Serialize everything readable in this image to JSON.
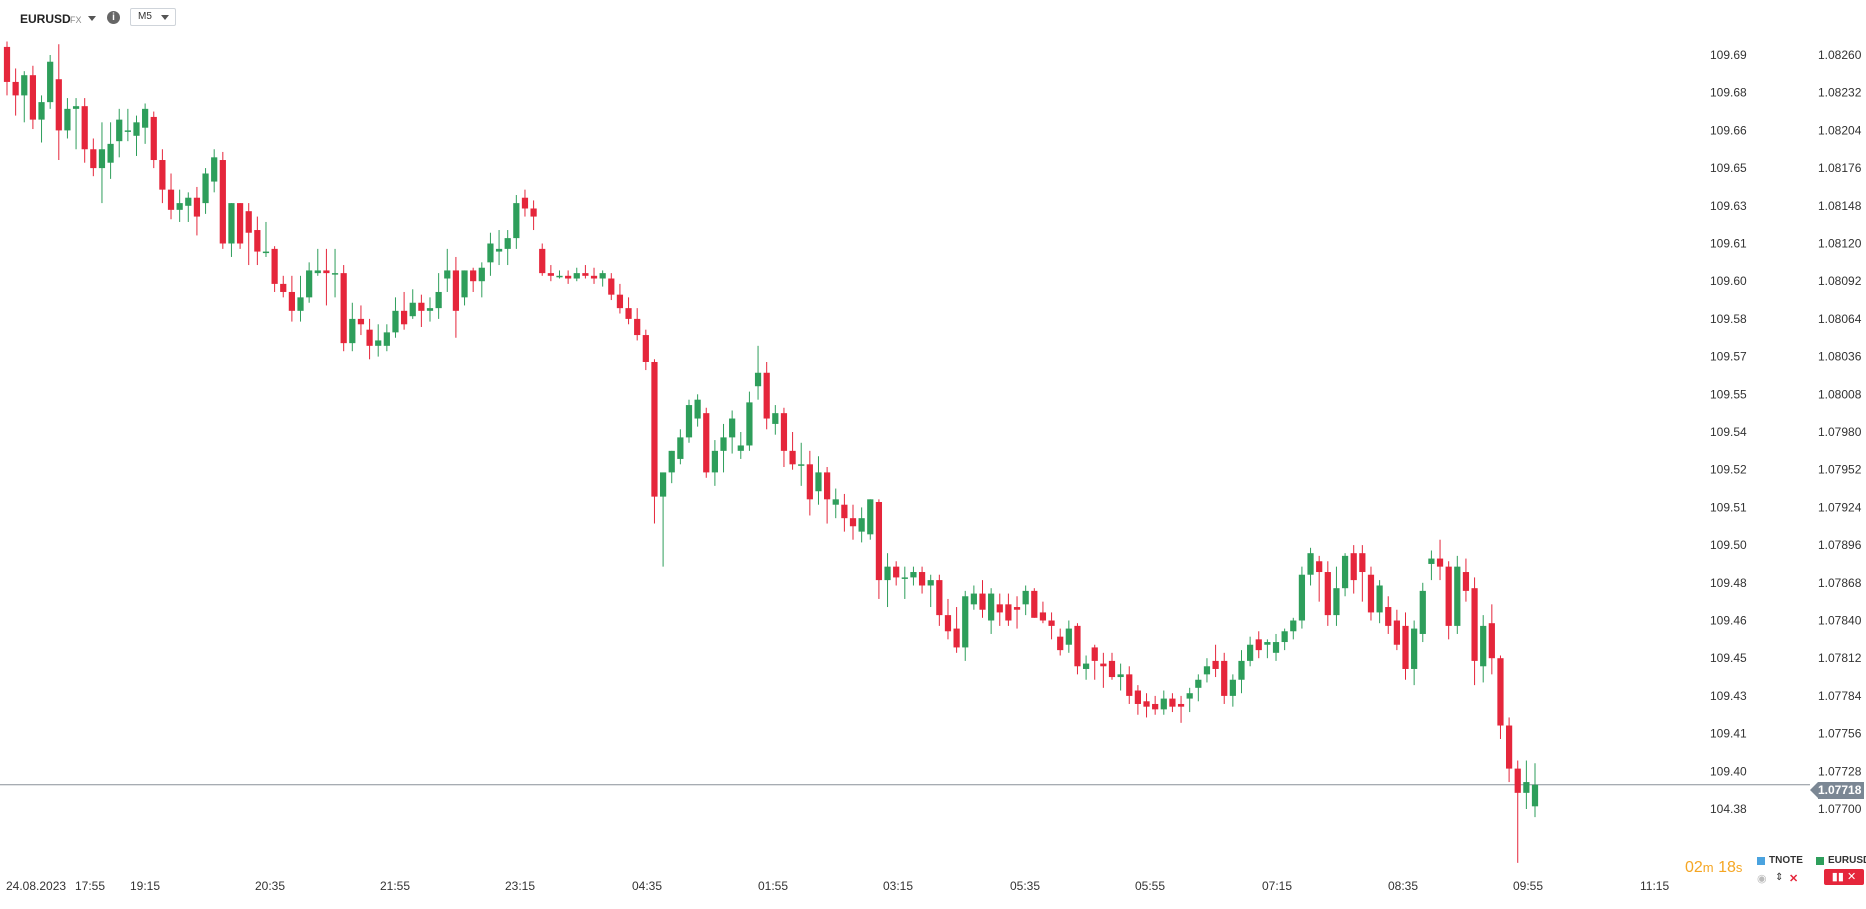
{
  "header": {
    "symbol": "EURUSD",
    "market": "FX",
    "timeframe": "M5"
  },
  "colors": {
    "up": "#2e9e5b",
    "down": "#e5263b",
    "accent": "#f5a623",
    "tnote": "#4aa3df"
  },
  "last_price": "1.07718",
  "timer": {
    "minutes": "02",
    "m": "m",
    "seconds": "18",
    "s": "s"
  },
  "legend": {
    "tnote": "TNOTE",
    "eurusd": "EURUSD"
  },
  "icons": [
    "info-icon",
    "chevron-down-icon",
    "eye-icon",
    "sort-icon",
    "close-icon"
  ],
  "chart_data": {
    "type": "candlestick",
    "x_ticks": [
      "24.08.2023",
      "17:55",
      "19:15",
      "20:35",
      "21:55",
      "23:15",
      "04:35",
      "01:55",
      "03:15",
      "05:35",
      "05:55",
      "07:15",
      "08:35",
      "09:55",
      "11:15"
    ],
    "right_axis_ticks": [
      "1.08260",
      "1.08232",
      "1.08204",
      "1.08176",
      "1.08148",
      "1.08120",
      "1.08092",
      "1.08064",
      "1.08036",
      "1.08008",
      "1.07980",
      "1.07952",
      "1.07924",
      "1.07896",
      "1.07868",
      "1.07840",
      "1.07812",
      "1.07784",
      "1.07756",
      "1.07728",
      "1.07700"
    ],
    "left_axis_ticks": [
      "109.69",
      "109.68",
      "109.66",
      "109.65",
      "109.63",
      "109.61",
      "109.60",
      "109.58",
      "109.57",
      "109.55",
      "109.54",
      "109.52",
      "109.51",
      "109.50",
      "109.48",
      "109.46",
      "109.45",
      "109.43",
      "109.41",
      "109.40",
      "104.38"
    ],
    "ylim": [
      1.0769,
      1.08275
    ],
    "candles": [
      [
        1.08266,
        1.0827,
        1.0823,
        1.0824
      ],
      [
        1.0824,
        1.0825,
        1.08215,
        1.0823
      ],
      [
        1.0823,
        1.08248,
        1.0821,
        1.08245
      ],
      [
        1.08245,
        1.08252,
        1.08205,
        1.08212
      ],
      [
        1.08212,
        1.0823,
        1.08195,
        1.08225
      ],
      [
        1.08225,
        1.0826,
        1.0822,
        1.08255
      ],
      [
        1.08242,
        1.08268,
        1.08182,
        1.08204
      ],
      [
        1.08204,
        1.08228,
        1.08198,
        1.0822
      ],
      [
        1.0822,
        1.08228,
        1.0819,
        1.08222
      ],
      [
        1.08222,
        1.08228,
        1.0818,
        1.0819
      ],
      [
        1.0819,
        1.08198,
        1.0817,
        1.08176
      ],
      [
        1.08176,
        1.0821,
        1.0815,
        1.0819
      ],
      [
        1.0818,
        1.0821,
        1.08168,
        1.08194
      ],
      [
        1.08196,
        1.0822,
        1.08184,
        1.08212
      ],
      [
        1.08204,
        1.0822,
        1.08196,
        1.08204
      ],
      [
        1.082,
        1.08215,
        1.08185,
        1.0821
      ],
      [
        1.08206,
        1.08224,
        1.08194,
        1.0822
      ],
      [
        1.08214,
        1.08218,
        1.08176,
        1.08182
      ],
      [
        1.08182,
        1.0819,
        1.0815,
        1.0816
      ],
      [
        1.0816,
        1.08172,
        1.08138,
        1.08145
      ],
      [
        1.08145,
        1.0816,
        1.08136,
        1.0815
      ],
      [
        1.08148,
        1.08158,
        1.08136,
        1.08154
      ],
      [
        1.08154,
        1.08162,
        1.08126,
        1.0814
      ],
      [
        1.0815,
        1.08176,
        1.08142,
        1.08172
      ],
      [
        1.08166,
        1.0819,
        1.08158,
        1.08184
      ],
      [
        1.08182,
        1.08188,
        1.08116,
        1.0812
      ],
      [
        1.0812,
        1.0815,
        1.0811,
        1.0815
      ],
      [
        1.0815,
        1.0815,
        1.08116,
        1.0812
      ],
      [
        1.08144,
        1.0815,
        1.08104,
        1.08128
      ],
      [
        1.0813,
        1.0814,
        1.08104,
        1.08114
      ],
      [
        1.08114,
        1.08136,
        1.0811,
        1.08114
      ],
      [
        1.08116,
        1.08118,
        1.08084,
        1.0809
      ],
      [
        1.0809,
        1.08096,
        1.0808,
        1.08084
      ],
      [
        1.08084,
        1.08096,
        1.08062,
        1.0807
      ],
      [
        1.0807,
        1.08096,
        1.08062,
        1.0808
      ],
      [
        1.0808,
        1.08106,
        1.08076,
        1.081
      ],
      [
        1.08098,
        1.08116,
        1.08096,
        1.081
      ],
      [
        1.081,
        1.08116,
        1.08074,
        1.08098
      ],
      [
        1.08098,
        1.08116,
        1.0808,
        1.08098
      ],
      [
        1.08098,
        1.08104,
        1.0804,
        1.08046
      ],
      [
        1.08046,
        1.08076,
        1.0804,
        1.08064
      ],
      [
        1.08064,
        1.08074,
        1.08052,
        1.0806
      ],
      [
        1.08056,
        1.08064,
        1.08034,
        1.08044
      ],
      [
        1.08044,
        1.0806,
        1.08036,
        1.08048
      ],
      [
        1.08044,
        1.0806,
        1.0804,
        1.08054
      ],
      [
        1.08054,
        1.0808,
        1.0805,
        1.0807
      ],
      [
        1.0807,
        1.08084,
        1.08056,
        1.0806
      ],
      [
        1.08066,
        1.08086,
        1.08064,
        1.08076
      ],
      [
        1.08076,
        1.08082,
        1.08058,
        1.0807
      ],
      [
        1.0807,
        1.0808,
        1.08062,
        1.08072
      ],
      [
        1.08072,
        1.08098,
        1.08064,
        1.08084
      ],
      [
        1.08094,
        1.08116,
        1.08084,
        1.081
      ],
      [
        1.081,
        1.0811,
        1.0805,
        1.0807
      ],
      [
        1.0808,
        1.081,
        1.08074,
        1.081
      ],
      [
        1.081,
        1.08102,
        1.08084,
        1.08092
      ],
      [
        1.08092,
        1.08106,
        1.0808,
        1.08102
      ],
      [
        1.08106,
        1.08128,
        1.08096,
        1.0812
      ],
      [
        1.08114,
        1.0813,
        1.08104,
        1.08116
      ],
      [
        1.08116,
        1.0813,
        1.08104,
        1.08124
      ],
      [
        1.08124,
        1.08156,
        1.08116,
        1.0815
      ],
      [
        1.08154,
        1.0816,
        1.0814,
        1.08146
      ],
      [
        1.08146,
        1.08152,
        1.0813,
        1.0814
      ],
      [
        1.08116,
        1.0812,
        1.08096,
        1.08098
      ],
      [
        1.08098,
        1.08104,
        1.08092,
        1.08096
      ],
      [
        1.08096,
        1.081,
        1.08094,
        1.08096
      ],
      [
        1.08096,
        1.081,
        1.0809,
        1.08094
      ],
      [
        1.08094,
        1.08102,
        1.08092,
        1.08098
      ],
      [
        1.08098,
        1.08104,
        1.08094,
        1.08096
      ],
      [
        1.08096,
        1.08102,
        1.0809,
        1.08094
      ],
      [
        1.08094,
        1.081,
        1.08088,
        1.08098
      ],
      [
        1.08094,
        1.08098,
        1.08078,
        1.08082
      ],
      [
        1.08082,
        1.0809,
        1.08068,
        1.08072
      ],
      [
        1.08072,
        1.0808,
        1.0806,
        1.08064
      ],
      [
        1.08064,
        1.08072,
        1.08048,
        1.08052
      ],
      [
        1.08052,
        1.08056,
        1.08026,
        1.08032
      ],
      [
        1.08032,
        1.08034,
        1.07912,
        1.07932
      ],
      [
        1.07932,
        1.07946,
        1.0788,
        1.0795
      ],
      [
        1.0795,
        1.07966,
        1.07942,
        1.07966
      ],
      [
        1.0796,
        1.07982,
        1.07956,
        1.07976
      ],
      [
        1.07976,
        1.08004,
        1.07972,
        1.08
      ],
      [
        1.0799,
        1.08008,
        1.07984,
        1.08004
      ],
      [
        1.07994,
        1.07998,
        1.07946,
        1.0795
      ],
      [
        1.0795,
        1.07974,
        1.0794,
        1.07966
      ],
      [
        1.07966,
        1.07986,
        1.0795,
        1.07976
      ],
      [
        1.07976,
        1.07996,
        1.07964,
        1.0799
      ],
      [
        1.07966,
        1.0798,
        1.0796,
        1.0797
      ],
      [
        1.0797,
        1.0801,
        1.07966,
        1.08002
      ],
      [
        1.08014,
        1.08044,
        1.08004,
        1.08024
      ],
      [
        1.08024,
        1.08032,
        1.07982,
        1.0799
      ],
      [
        1.07986,
        1.08,
        1.07978,
        1.07994
      ],
      [
        1.07994,
        1.07998,
        1.07954,
        1.07966
      ],
      [
        1.07966,
        1.0798,
        1.07952,
        1.07956
      ],
      [
        1.07956,
        1.07972,
        1.0794,
        1.07956
      ],
      [
        1.07956,
        1.07966,
        1.07918,
        1.0793
      ],
      [
        1.07936,
        1.07962,
        1.07926,
        1.0795
      ],
      [
        1.0795,
        1.07954,
        1.07912,
        1.0793
      ],
      [
        1.07926,
        1.07938,
        1.07916,
        1.0793
      ],
      [
        1.07926,
        1.07934,
        1.07906,
        1.07916
      ],
      [
        1.07916,
        1.07926,
        1.079,
        1.0791
      ],
      [
        1.07906,
        1.07924,
        1.07898,
        1.07916
      ],
      [
        1.07904,
        1.0793,
        1.079,
        1.0793
      ],
      [
        1.07928,
        1.0793,
        1.07856,
        1.0787
      ],
      [
        1.0787,
        1.0789,
        1.0785,
        1.0788
      ],
      [
        1.0788,
        1.07884,
        1.07866,
        1.07872
      ],
      [
        1.07872,
        1.0788,
        1.07856,
        1.07872
      ],
      [
        1.07872,
        1.0788,
        1.07866,
        1.07876
      ],
      [
        1.07876,
        1.0788,
        1.0786,
        1.07866
      ],
      [
        1.07866,
        1.07874,
        1.0785,
        1.0787
      ],
      [
        1.0787,
        1.07874,
        1.07836,
        1.07844
      ],
      [
        1.07844,
        1.07856,
        1.07826,
        1.07832
      ],
      [
        1.07834,
        1.0785,
        1.07816,
        1.0782
      ],
      [
        1.0782,
        1.07862,
        1.0781,
        1.07858
      ],
      [
        1.07852,
        1.07866,
        1.07848,
        1.0786
      ],
      [
        1.0786,
        1.0787,
        1.07842,
        1.07848
      ],
      [
        1.0784,
        1.07864,
        1.0783,
        1.0786
      ],
      [
        1.07852,
        1.0786,
        1.07836,
        1.07846
      ],
      [
        1.07852,
        1.0786,
        1.07836,
        1.0784
      ],
      [
        1.0785,
        1.07858,
        1.07834,
        1.07848
      ],
      [
        1.07852,
        1.07866,
        1.07844,
        1.07862
      ],
      [
        1.07862,
        1.07864,
        1.07842,
        1.07842
      ],
      [
        1.07846,
        1.07854,
        1.07838,
        1.0784
      ],
      [
        1.0784,
        1.07846,
        1.07826,
        1.07836
      ],
      [
        1.07828,
        1.07834,
        1.07814,
        1.07818
      ],
      [
        1.07822,
        1.0784,
        1.07816,
        1.07834
      ],
      [
        1.07836,
        1.07838,
        1.078,
        1.07806
      ],
      [
        1.07804,
        1.07814,
        1.07796,
        1.07808
      ],
      [
        1.0782,
        1.07822,
        1.07796,
        1.0781
      ],
      [
        1.07808,
        1.07816,
        1.0779,
        1.07806
      ],
      [
        1.0781,
        1.07816,
        1.07796,
        1.07798
      ],
      [
        1.07798,
        1.07808,
        1.07788,
        1.078
      ],
      [
        1.078,
        1.07806,
        1.07778,
        1.07784
      ],
      [
        1.07788,
        1.07792,
        1.0777,
        1.07778
      ],
      [
        1.0778,
        1.07786,
        1.07768,
        1.07776
      ],
      [
        1.07778,
        1.07784,
        1.0777,
        1.07774
      ],
      [
        1.07774,
        1.07788,
        1.0777,
        1.07782
      ],
      [
        1.07782,
        1.07786,
        1.07772,
        1.07776
      ],
      [
        1.07778,
        1.07784,
        1.07764,
        1.07776
      ],
      [
        1.07782,
        1.0779,
        1.07772,
        1.07786
      ],
      [
        1.0779,
        1.078,
        1.0778,
        1.07796
      ],
      [
        1.078,
        1.07812,
        1.07794,
        1.07806
      ],
      [
        1.0781,
        1.07822,
        1.07798,
        1.07804
      ],
      [
        1.0781,
        1.07816,
        1.07778,
        1.07784
      ],
      [
        1.07784,
        1.078,
        1.07776,
        1.07796
      ],
      [
        1.07796,
        1.07818,
        1.07786,
        1.0781
      ],
      [
        1.0781,
        1.07828,
        1.07806,
        1.07822
      ],
      [
        1.07826,
        1.07832,
        1.07812,
        1.07818
      ],
      [
        1.07822,
        1.07826,
        1.07812,
        1.07824
      ],
      [
        1.07816,
        1.0783,
        1.0781,
        1.07824
      ],
      [
        1.07824,
        1.07834,
        1.07818,
        1.07832
      ],
      [
        1.07832,
        1.07842,
        1.07826,
        1.0784
      ],
      [
        1.0784,
        1.0788,
        1.07834,
        1.07874
      ],
      [
        1.07874,
        1.07894,
        1.07866,
        1.0789
      ],
      [
        1.07884,
        1.07888,
        1.07854,
        1.07876
      ],
      [
        1.07876,
        1.07884,
        1.07836,
        1.07844
      ],
      [
        1.07844,
        1.0788,
        1.07836,
        1.07864
      ],
      [
        1.07864,
        1.0789,
        1.07858,
        1.07888
      ],
      [
        1.0789,
        1.07896,
        1.0786,
        1.0787
      ],
      [
        1.0789,
        1.07896,
        1.07854,
        1.07876
      ],
      [
        1.07874,
        1.0788,
        1.0784,
        1.07846
      ],
      [
        1.07846,
        1.0787,
        1.07838,
        1.07866
      ],
      [
        1.0785,
        1.07858,
        1.0783,
        1.07836
      ],
      [
        1.0784,
        1.07848,
        1.07818,
        1.07822
      ],
      [
        1.07836,
        1.07846,
        1.07796,
        1.07804
      ],
      [
        1.07804,
        1.0784,
        1.07792,
        1.07834
      ],
      [
        1.0783,
        1.07868,
        1.07824,
        1.07862
      ],
      [
        1.07882,
        1.07892,
        1.0787,
        1.07886
      ],
      [
        1.07886,
        1.079,
        1.0787,
        1.0788
      ],
      [
        1.0788,
        1.07884,
        1.07826,
        1.07836
      ],
      [
        1.07836,
        1.07888,
        1.0783,
        1.0788
      ],
      [
        1.07876,
        1.07886,
        1.07854,
        1.07862
      ],
      [
        1.07864,
        1.07872,
        1.07792,
        1.0781
      ],
      [
        1.07806,
        1.07844,
        1.07794,
        1.07836
      ],
      [
        1.07838,
        1.07852,
        1.078,
        1.07812
      ],
      [
        1.07812,
        1.07814,
        1.07752,
        1.07762
      ],
      [
        1.07762,
        1.07768,
        1.0772,
        1.0773
      ],
      [
        1.0773,
        1.07736,
        1.0766,
        1.07712
      ],
      [
        1.07712,
        1.07736,
        1.077,
        1.0772
      ],
      [
        1.07702,
        1.07734,
        1.07694,
        1.07718
      ]
    ]
  }
}
